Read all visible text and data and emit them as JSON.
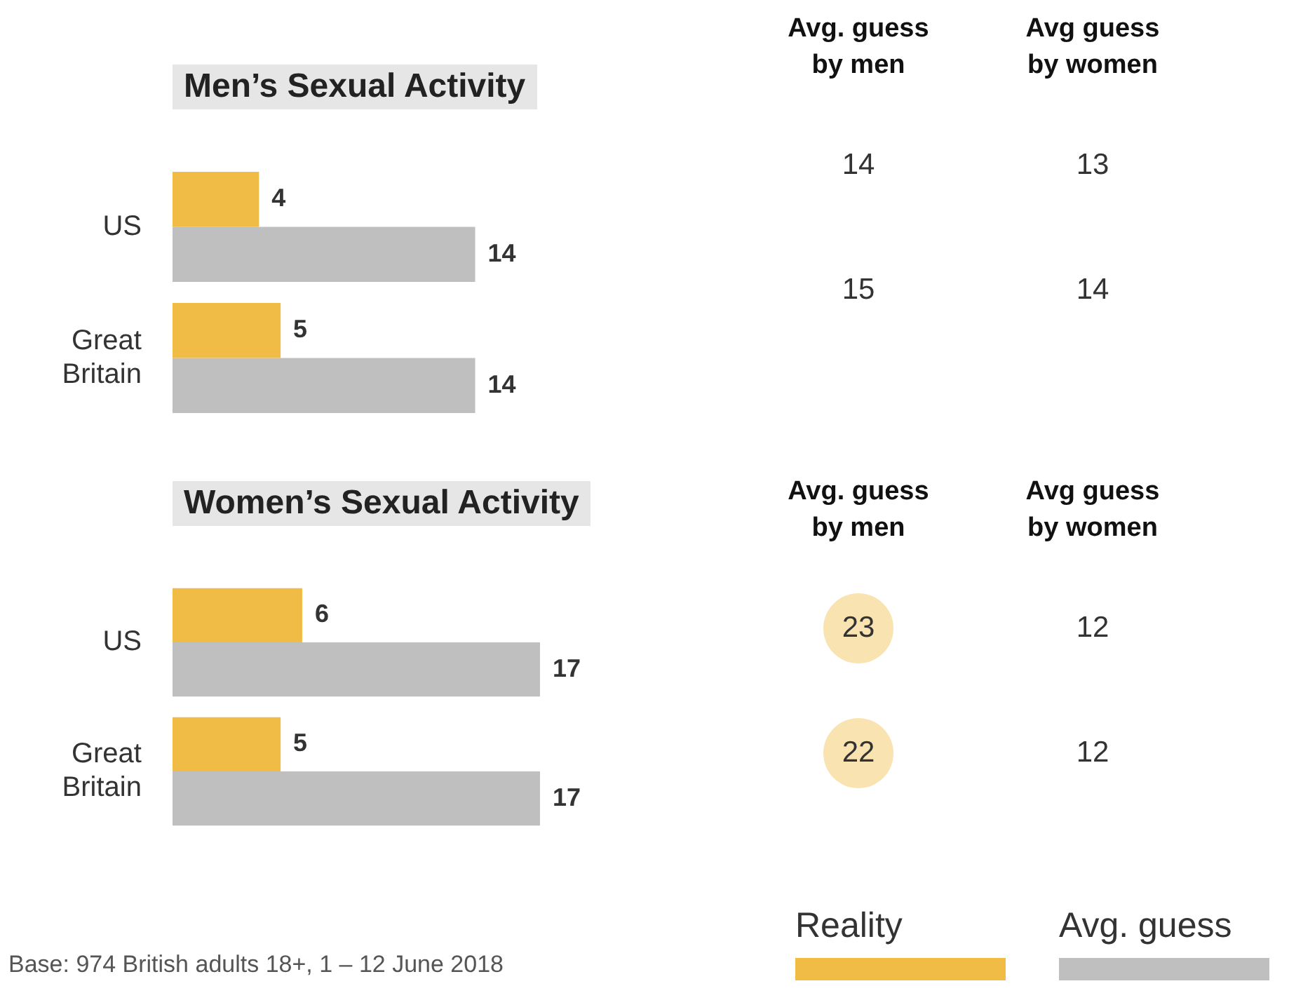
{
  "chart_data": [
    {
      "type": "bar",
      "orientation": "horizontal",
      "title": "Men’s Sexual Activity",
      "categories": [
        "US",
        "Great Britain"
      ],
      "series": [
        {
          "color": "#f0bc45",
          "values": [
            4,
            5
          ]
        },
        {
          "color": "#bfbfbf",
          "values": [
            14,
            14
          ]
        }
      ],
      "data_labels": true,
      "tick_labels": "y"
    },
    {
      "type": "other",
      "annotations": [
        "Avg. guess by men",
        "Avg guess by women",
        "14",
        "13",
        "15",
        "14"
      ]
    },
    {
      "type": "bar",
      "orientation": "horizontal",
      "title": "Women’s Sexual Activity",
      "categories": [
        "US",
        "Great Britain"
      ],
      "series": [
        {
          "name": "Reality",
          "color": "#f0bc45",
          "values": [
            6,
            5
          ]
        },
        {
          "name": "Avg. guess",
          "color": "#bfbfbf",
          "values": [
            17,
            17
          ]
        }
      ],
      "data_labels": true,
      "tick_labels": "y",
      "legend": "bottom right",
      "annotations": [
        "Base: 974 British adults 18+, 1 – 12 June 2018"
      ]
    },
    {
      "type": "other",
      "annotations": [
        "Avg. guess by men",
        "Avg guess by women",
        "23",
        "12",
        "22",
        "12"
      ]
    }
  ]
}
